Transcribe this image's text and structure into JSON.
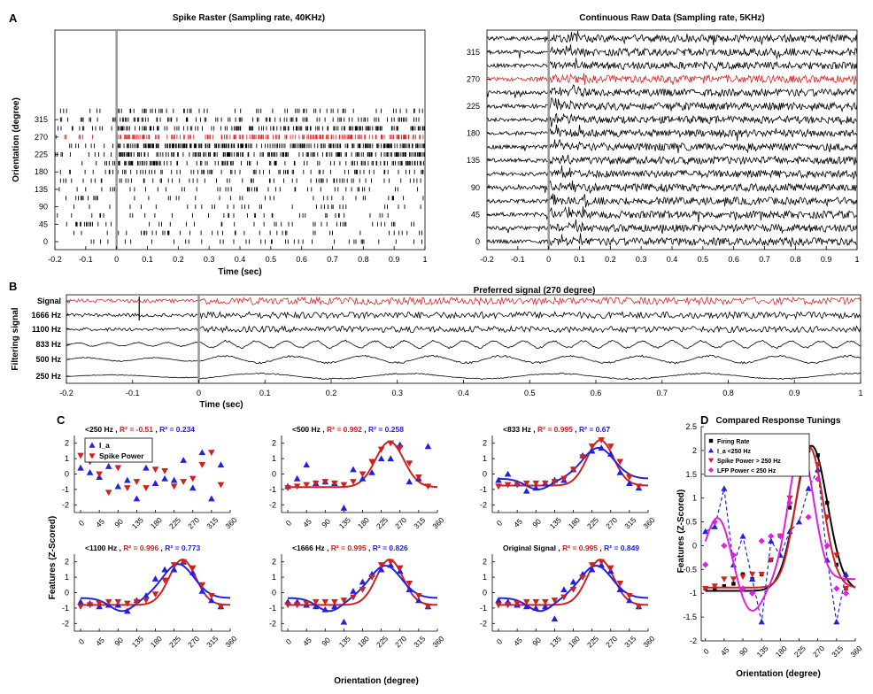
{
  "panel_letters": [
    "A",
    "B",
    "C",
    "D"
  ],
  "colors": {
    "preferred": "#d62728",
    "blue": "#2222dd",
    "red": "#cc2222",
    "magenta": "#dd22dd",
    "black": "#000000",
    "stim_line": "#999999"
  },
  "chart_data": [
    {
      "id": "raster",
      "type": "scatter",
      "title": "Spike Raster (Sampling rate, 40KHz)",
      "xlabel": "Time (sec)",
      "ylabel": "Orientation (degree)",
      "xlim": [
        -0.2,
        1
      ],
      "xticks": [
        "-0.2",
        "-0.1",
        "0",
        "0.1",
        "0.2",
        "0.3",
        "0.4",
        "0.5",
        "0.6",
        "0.7",
        "0.8",
        "0.9",
        "1"
      ],
      "yticks": [
        "0",
        "45",
        "90",
        "135",
        "180",
        "225",
        "270",
        "315"
      ],
      "orientations": [
        0,
        22.5,
        45,
        67.5,
        90,
        112.5,
        135,
        157.5,
        180,
        202.5,
        225,
        247.5,
        270,
        292.5,
        315,
        337.5
      ],
      "preferred_orientation": 270,
      "stimulus_onset": 0
    },
    {
      "id": "raw",
      "type": "line",
      "title": "Continuous Raw Data (Sampling rate, 5KHz)",
      "xlabel": "",
      "xlim": [
        -0.2,
        1
      ],
      "xticks": [
        "-0.2",
        "-0.1",
        "0",
        "0.1",
        "0.2",
        "0.3",
        "0.4",
        "0.5",
        "0.6",
        "0.7",
        "0.8",
        "0.9",
        "1"
      ],
      "yticks": [
        "0",
        "45",
        "90",
        "135",
        "180",
        "225",
        "270",
        "315"
      ],
      "orientations": [
        0,
        22.5,
        45,
        67.5,
        90,
        112.5,
        135,
        157.5,
        180,
        202.5,
        225,
        247.5,
        270,
        292.5,
        315,
        337.5
      ],
      "preferred_orientation": 270,
      "stimulus_onset": 0
    },
    {
      "id": "filter",
      "type": "line",
      "title": "Preferred signal (270 degree)",
      "xlabel": "Time (sec)",
      "ylabel": "Filtering signal",
      "xlim": [
        -0.2,
        1
      ],
      "xticks": [
        "-0.2",
        "-0.1",
        "0",
        "0.1",
        "0.2",
        "0.3",
        "0.4",
        "0.5",
        "0.6",
        "0.7",
        "0.8",
        "0.9",
        "1"
      ],
      "rows": [
        "Signal",
        "1666 Hz",
        "1100 Hz",
        "833 Hz",
        "500 Hz",
        "250 Hz"
      ],
      "stimulus_onset": 0
    },
    {
      "id": "tuning",
      "type": "scatter",
      "ylabel": "Features (Z-Scored)",
      "xlabel": "Orientation (degree)",
      "xlim": [
        -15,
        360
      ],
      "ylim": [
        -2.5,
        2.5
      ],
      "xticks": [
        0,
        45,
        90,
        135,
        180,
        225,
        270,
        315,
        360
      ],
      "yticks": [
        -2,
        -1,
        0,
        1,
        2
      ],
      "legend": [
        "I_a",
        "Spike Power"
      ],
      "x": [
        0,
        22.5,
        45,
        67.5,
        90,
        112.5,
        135,
        157.5,
        180,
        202.5,
        225,
        247.5,
        270,
        292.5,
        315,
        337.5
      ],
      "panels": [
        {
          "title": "<250 Hz",
          "r2_red": "R² = -0.51",
          "r2_blue": "R² = 0.234",
          "blue": [
            0.4,
            0.1,
            -0.2,
            0.5,
            -0.8,
            -0.4,
            -1.6,
            0.4,
            -0.6,
            -0.3,
            -0.4,
            0.9,
            -0.9,
            1.4,
            -1.6,
            0.6
          ],
          "red": [
            1.2,
            0.8,
            0.0,
            -1.2,
            0.4,
            -0.9,
            -0.5,
            -0.9,
            0.3,
            0.2,
            -0.8,
            -0.5,
            -0.3,
            0.6,
            1.4,
            -0.7
          ],
          "fit_red": null,
          "fit_blue": null
        },
        {
          "title": "<500 Hz",
          "r2_red": "R² = 0.992",
          "r2_blue": "R² = 0.258",
          "blue": [
            -0.8,
            -0.3,
            0.6,
            -0.6,
            -0.5,
            -0.6,
            -2.2,
            0.3,
            -0.3,
            0.1,
            1.0,
            1.0,
            1.9,
            -0.5,
            -0.3,
            1.8
          ],
          "red": [
            -0.9,
            -0.8,
            -0.7,
            -0.6,
            -0.5,
            -0.6,
            -0.7,
            -0.5,
            0.0,
            0.8,
            1.6,
            2.0,
            1.7,
            0.7,
            -0.2,
            -0.8
          ],
          "fit_red": {
            "a": -0.85,
            "b": 2.95,
            "mu": 245,
            "s": 34
          },
          "fit_blue": null
        },
        {
          "title": "<833 Hz",
          "r2_red": "R² = 0.995",
          "r2_blue": "R² = 0.67",
          "blue": [
            -0.4,
            0.0,
            -0.6,
            -1.1,
            -0.9,
            -0.6,
            -0.4,
            -0.4,
            0.3,
            1.2,
            1.5,
            1.7,
            1.3,
            0.1,
            -0.6,
            -0.9
          ],
          "red": [
            -0.8,
            -0.7,
            -0.7,
            -0.6,
            -0.6,
            -0.6,
            -0.5,
            -0.3,
            0.3,
            1.1,
            1.8,
            2.2,
            1.8,
            0.8,
            -0.2,
            -0.8
          ],
          "fit_red": {
            "a": -0.75,
            "b": 2.95,
            "mu": 245,
            "s": 32
          },
          "fit_blue": {
            "a": -0.3,
            "b": 2.0,
            "mu": 240,
            "s": 38,
            "dip": 0.7,
            "dmu": 95,
            "ds": 30
          }
        },
        {
          "title": "<1100 Hz",
          "r2_red": "R² = 0.996",
          "r2_blue": "R² = 0.773",
          "blue": [
            -0.6,
            -0.7,
            -0.9,
            -0.8,
            -0.8,
            -1.2,
            -0.5,
            -0.2,
            0.9,
            1.5,
            1.5,
            2.0,
            1.3,
            0.1,
            -0.5,
            -0.9
          ],
          "red": [
            -0.9,
            -0.8,
            -0.7,
            -0.6,
            -0.6,
            -0.7,
            -0.6,
            -0.5,
            -0.1,
            0.8,
            1.8,
            2.0,
            1.6,
            0.5,
            -0.2,
            -0.9
          ],
          "fit_red": {
            "a": -0.8,
            "b": 2.95,
            "mu": 245,
            "s": 32
          },
          "fit_blue": {
            "a": -0.35,
            "b": 2.2,
            "mu": 235,
            "s": 38,
            "dip": 0.85,
            "dmu": 100,
            "ds": 30
          }
        },
        {
          "title": "<1666 Hz",
          "r2_red": "R² = 0.995",
          "r2_blue": "R² = 0.826",
          "blue": [
            -0.6,
            -0.6,
            -0.8,
            -0.9,
            -1.1,
            -0.9,
            -1.9,
            0.1,
            0.7,
            1.2,
            1.5,
            1.8,
            1.4,
            0.2,
            -0.5,
            -0.9
          ],
          "red": [
            -0.8,
            -0.8,
            -0.7,
            -0.6,
            -0.6,
            -0.6,
            -0.5,
            -0.3,
            0.2,
            1.0,
            1.8,
            2.0,
            1.6,
            0.6,
            -0.2,
            -0.9
          ],
          "fit_red": {
            "a": -0.8,
            "b": 2.95,
            "mu": 245,
            "s": 32
          },
          "fit_blue": {
            "a": -0.35,
            "b": 2.1,
            "mu": 235,
            "s": 38,
            "dip": 0.85,
            "dmu": 100,
            "ds": 30
          }
        },
        {
          "title": "Original Signal",
          "r2_red": "R² = 0.995",
          "r2_blue": "R² = 0.849",
          "blue": [
            -0.5,
            -0.6,
            -0.8,
            -0.9,
            -1.0,
            -0.9,
            -1.7,
            0.2,
            0.7,
            1.2,
            1.5,
            1.8,
            1.4,
            0.2,
            -0.5,
            -0.9
          ],
          "red": [
            -0.8,
            -0.8,
            -0.7,
            -0.6,
            -0.6,
            -0.6,
            -0.5,
            -0.3,
            0.2,
            1.0,
            1.8,
            2.0,
            1.6,
            0.6,
            -0.2,
            -0.9
          ],
          "fit_red": {
            "a": -0.8,
            "b": 2.95,
            "mu": 245,
            "s": 32
          },
          "fit_blue": {
            "a": -0.35,
            "b": 2.1,
            "mu": 235,
            "s": 38,
            "dip": 0.85,
            "dmu": 100,
            "ds": 30
          }
        }
      ]
    },
    {
      "id": "compare",
      "type": "line",
      "title": "Compared Response Tunings",
      "xlabel": "Orientation (degree)",
      "ylabel": "Features (Z-Scored)",
      "xlim": [
        -10,
        360
      ],
      "ylim": [
        -2,
        2.5
      ],
      "xticks": [
        0,
        45,
        90,
        135,
        180,
        225,
        270,
        315,
        360
      ],
      "yticks": [
        -2,
        -1.5,
        -1,
        -0.5,
        0,
        0.5,
        1,
        1.5,
        2,
        2.5
      ],
      "x": [
        0,
        22.5,
        45,
        67.5,
        90,
        112.5,
        135,
        157.5,
        180,
        202.5,
        225,
        247.5,
        270,
        292.5,
        315,
        337.5
      ],
      "series": [
        {
          "name": "Firing Rate",
          "color": "#000000",
          "marker": "square",
          "values": [
            -0.9,
            -0.9,
            -0.85,
            -0.8,
            -0.6,
            -0.7,
            -0.6,
            -0.3,
            0.2,
            0.8,
            1.5,
            2.0,
            1.9,
            0.9,
            -0.4,
            -0.9
          ],
          "fit": {
            "a": -0.95,
            "b": 3.05,
            "mu": 255,
            "s": 38
          }
        },
        {
          "name": "I_a <250 Hz",
          "color": "#2222dd",
          "marker": "triangle",
          "dashed": true,
          "values": [
            0.3,
            0.4,
            1.2,
            -0.4,
            0.2,
            -0.7,
            -1.6,
            0.1,
            -0.2,
            0.3,
            0.5,
            1.2,
            1.6,
            -0.3,
            -1.6,
            -0.6
          ],
          "fit": null
        },
        {
          "name": "Spike Power > 250 Hz",
          "color": "#cc2222",
          "marker": "triangle-down",
          "values": [
            -0.9,
            -0.85,
            -0.7,
            -0.7,
            -0.65,
            -0.6,
            -0.6,
            -0.3,
            0.2,
            1.0,
            1.8,
            2.0,
            1.7,
            0.6,
            -0.2,
            -0.9
          ],
          "fit": {
            "a": -0.88,
            "b": 2.95,
            "mu": 250,
            "s": 33
          }
        },
        {
          "name": "LFP Power < 250 Hz",
          "color": "#dd22dd",
          "marker": "diamond",
          "values": [
            -0.4,
            0.5,
            0.0,
            -0.2,
            -0.9,
            -1.0,
            0.1,
            0.2,
            0.2,
            0.9,
            1.9,
            0.6,
            1.4,
            0.0,
            -0.9,
            -1.0
          ],
          "fit": {
            "a": -0.7,
            "b": 2.75,
            "mu": 230,
            "s": 30,
            "bump": 1.3,
            "bmu": 30,
            "bs": 30,
            "dip": 0.7,
            "dmu": 110,
            "ds": 30
          }
        }
      ]
    }
  ]
}
